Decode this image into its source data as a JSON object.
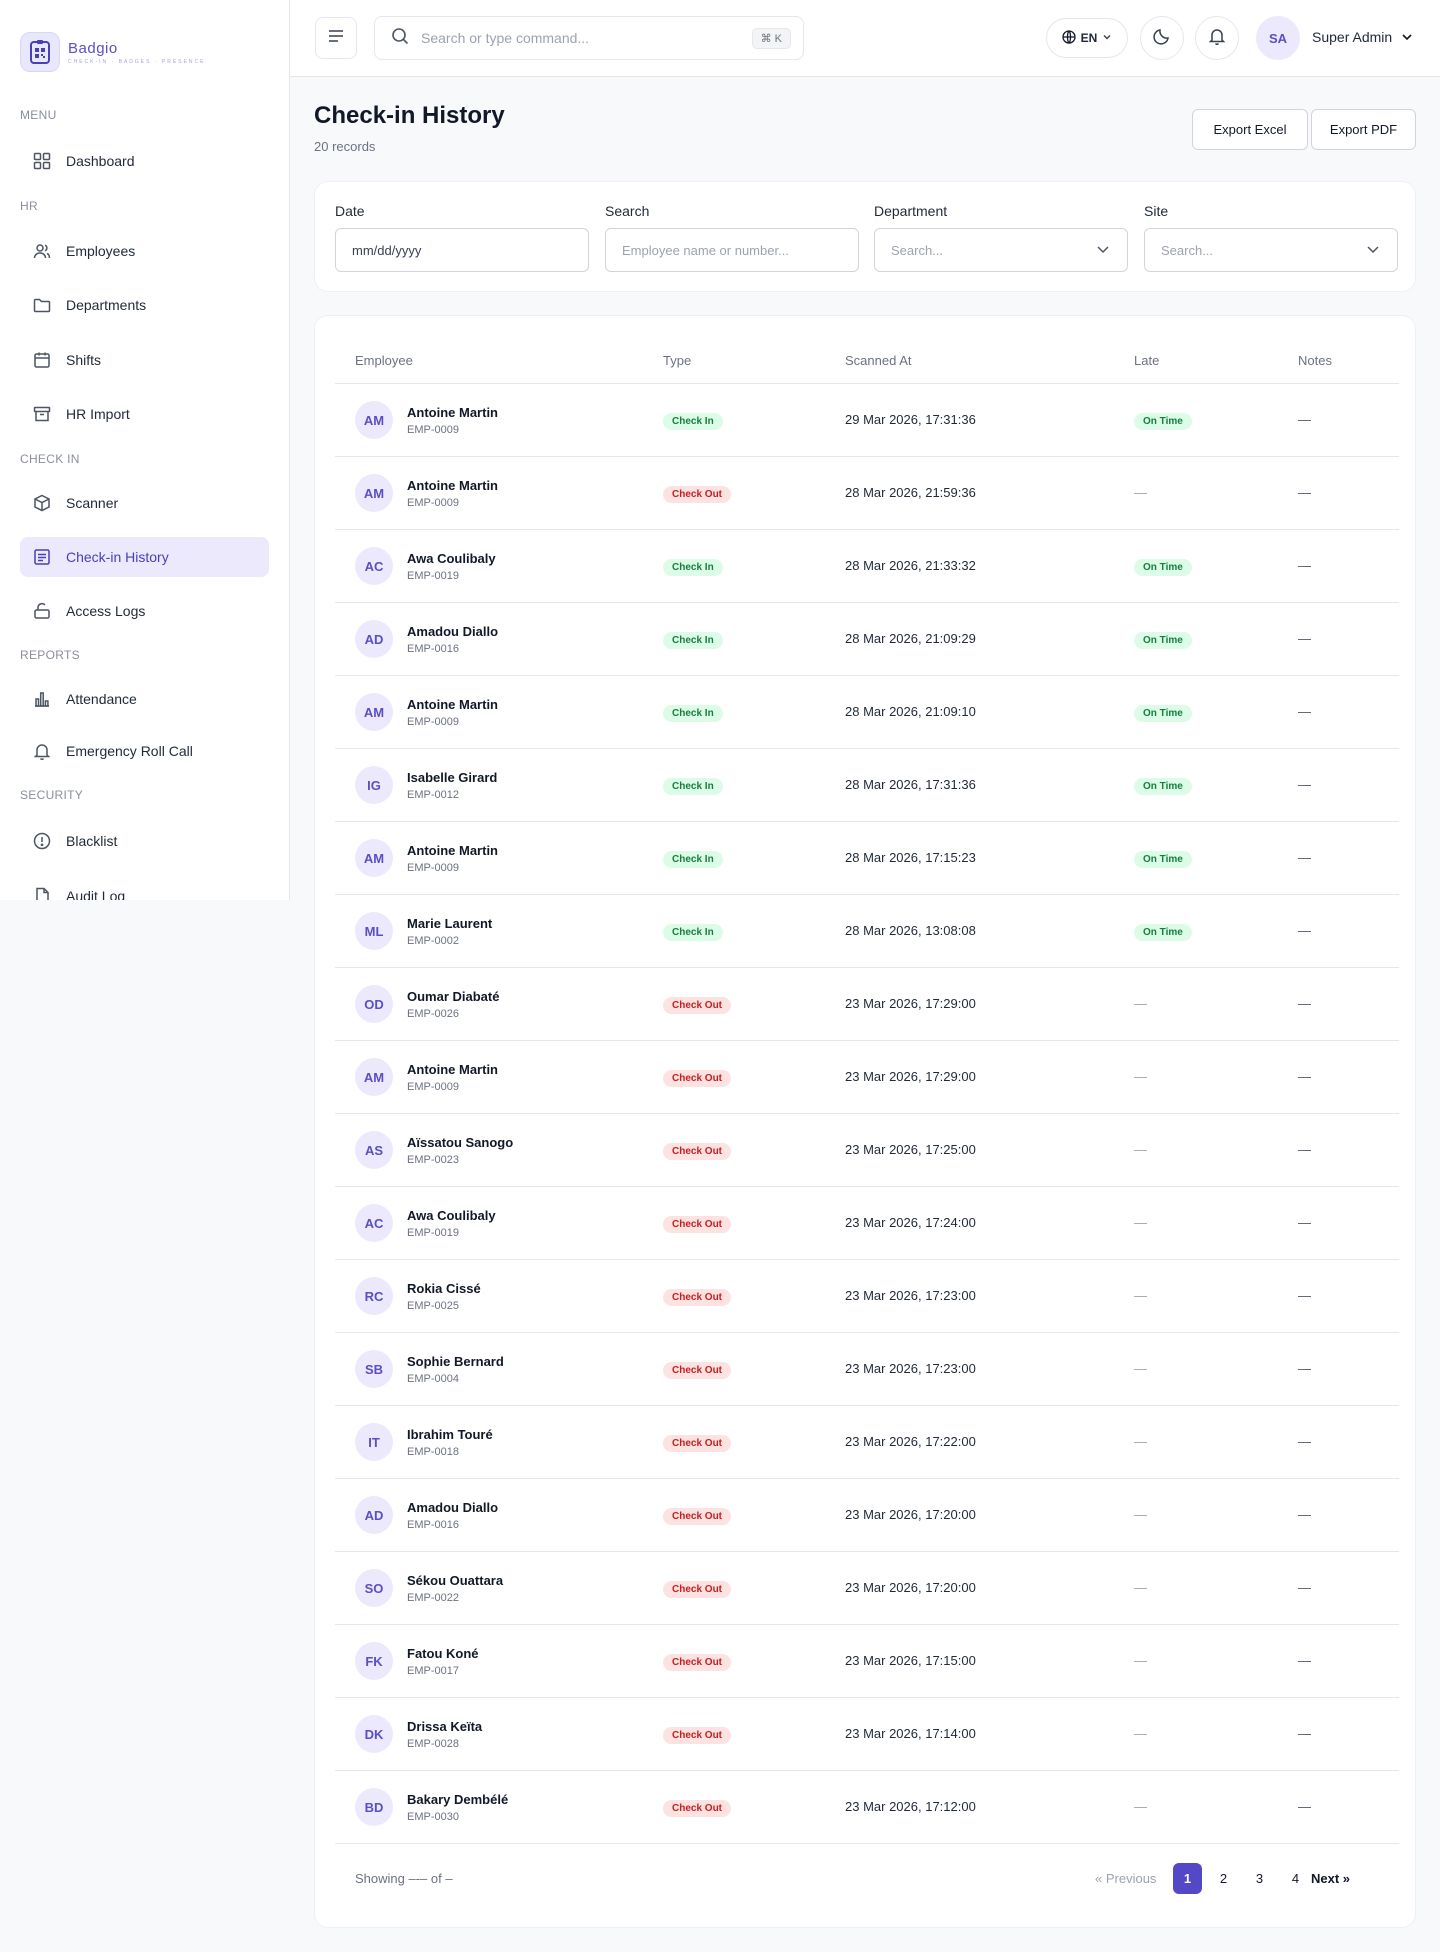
{
  "brand": {
    "name": "Badgio",
    "tagline": "CHECK-IN · BADGES · PRESENCE"
  },
  "sidebar": {
    "sections": [
      {
        "label": "MENU"
      },
      {
        "label": "HR"
      },
      {
        "label": "CHECK IN"
      },
      {
        "label": "REPORTS"
      },
      {
        "label": "SECURITY"
      }
    ],
    "items": [
      {
        "label": "Dashboard",
        "icon": "grid-icon"
      },
      {
        "label": "Employees",
        "icon": "users-icon"
      },
      {
        "label": "Departments",
        "icon": "folder-icon"
      },
      {
        "label": "Shifts",
        "icon": "calendar-icon"
      },
      {
        "label": "HR Import",
        "icon": "archive-icon"
      },
      {
        "label": "Scanner",
        "icon": "box-icon"
      },
      {
        "label": "Check-in History",
        "icon": "list-icon",
        "active": true
      },
      {
        "label": "Access Logs",
        "icon": "lock-icon"
      },
      {
        "label": "Attendance",
        "icon": "bar-chart-icon"
      },
      {
        "label": "Emergency Roll Call",
        "icon": "bell-icon"
      },
      {
        "label": "Blacklist",
        "icon": "alert-circle-icon"
      },
      {
        "label": "Audit Log",
        "icon": "file-icon"
      }
    ]
  },
  "header": {
    "search_placeholder": "Search or type command...",
    "shortcut": "⌘ K",
    "language": "EN",
    "user_initials": "SA",
    "user_name": "Super Admin"
  },
  "page": {
    "title": "Check-in History",
    "subtitle": "20 records",
    "export_excel": "Export Excel",
    "export_pdf": "Export PDF"
  },
  "filters": {
    "date_label": "Date",
    "date_value": "mm/dd/yyyy",
    "search_label": "Search",
    "search_placeholder": "Employee name or number...",
    "department_label": "Department",
    "department_placeholder": "Search...",
    "site_label": "Site",
    "site_placeholder": "Search..."
  },
  "table": {
    "columns": [
      "Employee",
      "Type",
      "Scanned At",
      "Late",
      "Notes"
    ],
    "rows": [
      {
        "initials": "AM",
        "name": "Antoine Martin",
        "number": "EMP-0009",
        "type": "Check In",
        "kind": "in",
        "scanned": "29 Mar 2026, 17:31:36",
        "late": "On Time",
        "notes": "—"
      },
      {
        "initials": "AM",
        "name": "Antoine Martin",
        "number": "EMP-0009",
        "type": "Check Out",
        "kind": "out",
        "scanned": "28 Mar 2026, 21:59:36",
        "late": "—",
        "notes": "—"
      },
      {
        "initials": "AC",
        "name": "Awa Coulibaly",
        "number": "EMP-0019",
        "type": "Check In",
        "kind": "in",
        "scanned": "28 Mar 2026, 21:33:32",
        "late": "On Time",
        "notes": "—"
      },
      {
        "initials": "AD",
        "name": "Amadou Diallo",
        "number": "EMP-0016",
        "type": "Check In",
        "kind": "in",
        "scanned": "28 Mar 2026, 21:09:29",
        "late": "On Time",
        "notes": "—"
      },
      {
        "initials": "AM",
        "name": "Antoine Martin",
        "number": "EMP-0009",
        "type": "Check In",
        "kind": "in",
        "scanned": "28 Mar 2026, 21:09:10",
        "late": "On Time",
        "notes": "—"
      },
      {
        "initials": "IG",
        "name": "Isabelle Girard",
        "number": "EMP-0012",
        "type": "Check In",
        "kind": "in",
        "scanned": "28 Mar 2026, 17:31:36",
        "late": "On Time",
        "notes": "—"
      },
      {
        "initials": "AM",
        "name": "Antoine Martin",
        "number": "EMP-0009",
        "type": "Check In",
        "kind": "in",
        "scanned": "28 Mar 2026, 17:15:23",
        "late": "On Time",
        "notes": "—"
      },
      {
        "initials": "ML",
        "name": "Marie Laurent",
        "number": "EMP-0002",
        "type": "Check In",
        "kind": "in",
        "scanned": "28 Mar 2026, 13:08:08",
        "late": "On Time",
        "notes": "—"
      },
      {
        "initials": "OD",
        "name": "Oumar Diabaté",
        "number": "EMP-0026",
        "type": "Check Out",
        "kind": "out",
        "scanned": "23 Mar 2026, 17:29:00",
        "late": "—",
        "notes": "—"
      },
      {
        "initials": "AM",
        "name": "Antoine Martin",
        "number": "EMP-0009",
        "type": "Check Out",
        "kind": "out",
        "scanned": "23 Mar 2026, 17:29:00",
        "late": "—",
        "notes": "—"
      },
      {
        "initials": "AS",
        "name": "Aïssatou Sanogo",
        "number": "EMP-0023",
        "type": "Check Out",
        "kind": "out",
        "scanned": "23 Mar 2026, 17:25:00",
        "late": "—",
        "notes": "—"
      },
      {
        "initials": "AC",
        "name": "Awa Coulibaly",
        "number": "EMP-0019",
        "type": "Check Out",
        "kind": "out",
        "scanned": "23 Mar 2026, 17:24:00",
        "late": "—",
        "notes": "—"
      },
      {
        "initials": "RC",
        "name": "Rokia Cissé",
        "number": "EMP-0025",
        "type": "Check Out",
        "kind": "out",
        "scanned": "23 Mar 2026, 17:23:00",
        "late": "—",
        "notes": "—"
      },
      {
        "initials": "SB",
        "name": "Sophie Bernard",
        "number": "EMP-0004",
        "type": "Check Out",
        "kind": "out",
        "scanned": "23 Mar 2026, 17:23:00",
        "late": "—",
        "notes": "—"
      },
      {
        "initials": "IT",
        "name": "Ibrahim Touré",
        "number": "EMP-0018",
        "type": "Check Out",
        "kind": "out",
        "scanned": "23 Mar 2026, 17:22:00",
        "late": "—",
        "notes": "—"
      },
      {
        "initials": "AD",
        "name": "Amadou Diallo",
        "number": "EMP-0016",
        "type": "Check Out",
        "kind": "out",
        "scanned": "23 Mar 2026, 17:20:00",
        "late": "—",
        "notes": "—"
      },
      {
        "initials": "SO",
        "name": "Sékou Ouattara",
        "number": "EMP-0022",
        "type": "Check Out",
        "kind": "out",
        "scanned": "23 Mar 2026, 17:20:00",
        "late": "—",
        "notes": "—"
      },
      {
        "initials": "FK",
        "name": "Fatou Koné",
        "number": "EMP-0017",
        "type": "Check Out",
        "kind": "out",
        "scanned": "23 Mar 2026, 17:15:00",
        "late": "—",
        "notes": "—"
      },
      {
        "initials": "DK",
        "name": "Drissa Keïta",
        "number": "EMP-0028",
        "type": "Check Out",
        "kind": "out",
        "scanned": "23 Mar 2026, 17:14:00",
        "late": "—",
        "notes": "—"
      },
      {
        "initials": "BD",
        "name": "Bakary Dembélé",
        "number": "EMP-0030",
        "type": "Check Out",
        "kind": "out",
        "scanned": "23 Mar 2026, 17:12:00",
        "late": "—",
        "notes": "—"
      }
    ]
  },
  "pagination": {
    "showing": "Showing –-– of –",
    "prev": "« Previous",
    "pages": [
      "1",
      "2",
      "3",
      "4"
    ],
    "current": "1",
    "next": "Next »"
  },
  "colors": {
    "accent": "#5548c7",
    "check_in": "#15803d",
    "check_out": "#c81e1e"
  }
}
